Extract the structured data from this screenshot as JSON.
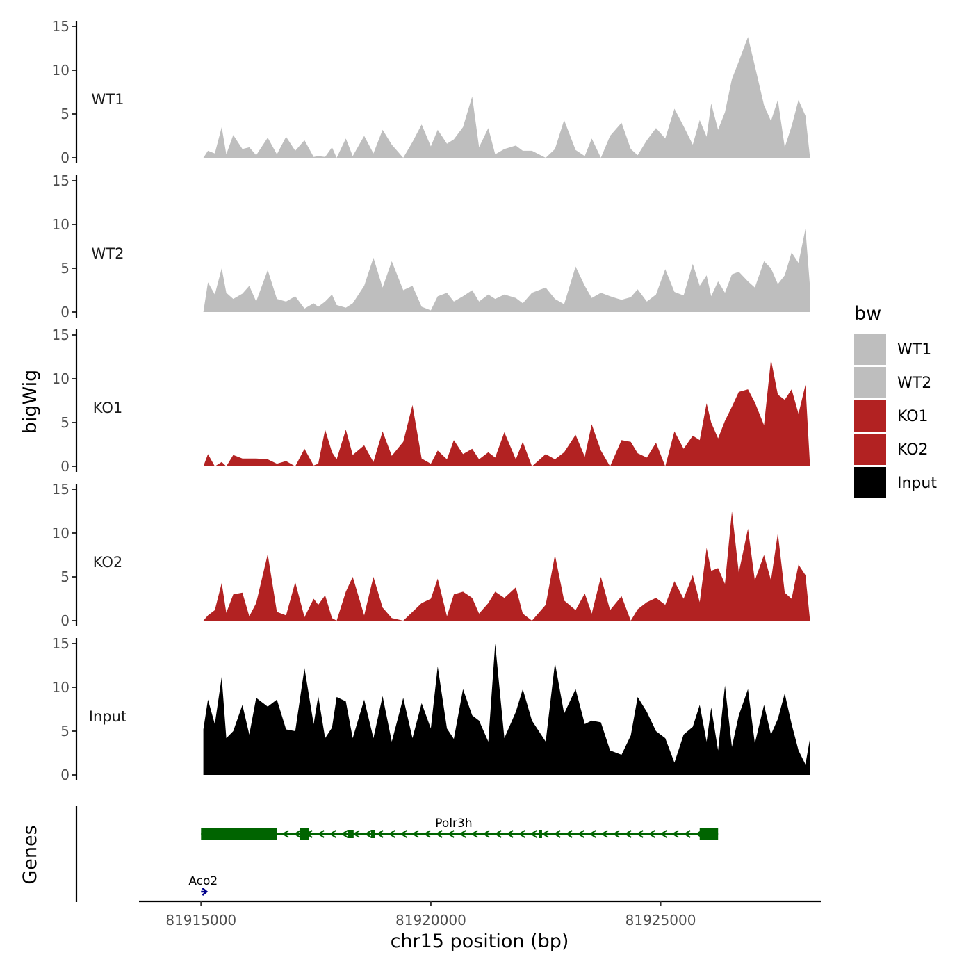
{
  "chart_data": {
    "type": "area",
    "chromosome": "chr15",
    "x_range": [
      81915000,
      81928300
    ],
    "xlabel": "chr15 position (bp)",
    "ylabel": "bigWig",
    "genes_label": "Genes",
    "x_ticks": [
      {
        "value": 81915000,
        "label": "81915000"
      },
      {
        "value": 81920000,
        "label": "81920000"
      },
      {
        "value": 81925000,
        "label": "81925000"
      }
    ],
    "ylim": [
      0,
      15
    ],
    "y_ticks": [
      {
        "value": 0,
        "label": "0"
      },
      {
        "value": 5,
        "label": "5"
      },
      {
        "value": 10,
        "label": "10"
      },
      {
        "value": 15,
        "label": "15"
      }
    ],
    "legend": {
      "title": "bw",
      "entries": [
        {
          "label": "WT1",
          "color": "#bebebe"
        },
        {
          "label": "WT2",
          "color": "#bebebe"
        },
        {
          "label": "KO1",
          "color": "#b22222"
        },
        {
          "label": "KO2",
          "color": "#b22222"
        },
        {
          "label": "Input",
          "color": "#000000"
        }
      ]
    },
    "series": [
      {
        "name": "WT1",
        "color": "#bebebe",
        "x": [
          81915050,
          81915150,
          81915300,
          81915450,
          81915550,
          81915700,
          81915900,
          81916050,
          81916200,
          81916450,
          81916650,
          81916850,
          81917050,
          81917250,
          81917450,
          81917550,
          81917700,
          81917850,
          81917950,
          81918150,
          81918300,
          81918550,
          81918750,
          81918950,
          81919150,
          81919400,
          81919600,
          81919800,
          81920000,
          81920150,
          81920350,
          81920500,
          81920700,
          81920900,
          81921050,
          81921250,
          81921400,
          81921600,
          81921850,
          81922000,
          81922200,
          81922500,
          81922700,
          81922900,
          81923150,
          81923350,
          81923500,
          81923700,
          81923900,
          81924150,
          81924350,
          81924500,
          81924700,
          81924900,
          81925100,
          81925300,
          81925500,
          81925700,
          81925850,
          81926000,
          81926100,
          81926250,
          81926400,
          81926550,
          81926700,
          81926900,
          81927050,
          81927250,
          81927400,
          81927550,
          81927700,
          81927850,
          81928000,
          81928150,
          81928250
        ],
        "values": [
          0,
          0.8,
          0.5,
          3.5,
          0.4,
          2.6,
          1.0,
          1.2,
          0.3,
          2.3,
          0.4,
          2.4,
          0.8,
          2.0,
          0.1,
          0.2,
          0.1,
          1.2,
          0,
          2.2,
          0.2,
          2.5,
          0.5,
          3.2,
          1.5,
          0.0,
          1.8,
          3.8,
          1.3,
          3.2,
          1.6,
          2.1,
          3.5,
          7.0,
          1.2,
          3.4,
          0.4,
          1.0,
          1.4,
          0.8,
          0.8,
          0.0,
          1.0,
          4.3,
          0.9,
          0.2,
          2.2,
          0.0,
          2.5,
          4.0,
          1.0,
          0.3,
          2.0,
          3.4,
          2.2,
          5.6,
          3.6,
          1.5,
          4.3,
          2.4,
          6.2,
          3.2,
          5.2,
          9.0,
          11.0,
          13.8,
          10.5,
          6.0,
          4.2,
          6.6,
          1.2,
          3.6,
          6.6,
          4.8,
          0.0
        ]
      },
      {
        "name": "WT2",
        "color": "#bebebe",
        "x": [
          81915050,
          81915150,
          81915300,
          81915450,
          81915550,
          81915700,
          81915900,
          81916050,
          81916200,
          81916450,
          81916650,
          81916850,
          81917050,
          81917250,
          81917450,
          81917550,
          81917700,
          81917850,
          81917950,
          81918150,
          81918300,
          81918550,
          81918750,
          81918950,
          81919150,
          81919400,
          81919600,
          81919800,
          81920000,
          81920150,
          81920350,
          81920500,
          81920700,
          81920900,
          81921050,
          81921250,
          81921400,
          81921600,
          81921850,
          81922000,
          81922200,
          81922500,
          81922700,
          81922900,
          81923150,
          81923350,
          81923500,
          81923700,
          81923900,
          81924150,
          81924350,
          81924500,
          81924700,
          81924900,
          81925100,
          81925300,
          81925500,
          81925700,
          81925850,
          81926000,
          81926100,
          81926250,
          81926400,
          81926550,
          81926700,
          81926900,
          81927050,
          81927250,
          81927400,
          81927550,
          81927700,
          81927850,
          81928000,
          81928150,
          81928250
        ],
        "values": [
          0,
          3.4,
          2.0,
          5.0,
          2.2,
          1.5,
          2.1,
          3.0,
          1.2,
          4.8,
          1.5,
          1.2,
          1.8,
          0.4,
          1.0,
          0.6,
          1.2,
          2.0,
          0.8,
          0.5,
          1.0,
          3.0,
          6.2,
          2.8,
          5.8,
          2.5,
          3.0,
          0.6,
          0.2,
          1.8,
          2.2,
          1.2,
          1.8,
          2.5,
          1.2,
          2.0,
          1.5,
          2.0,
          1.6,
          1.0,
          2.2,
          2.8,
          1.5,
          0.9,
          5.2,
          3.0,
          1.6,
          2.2,
          1.8,
          1.4,
          1.7,
          2.6,
          1.2,
          2.0,
          4.9,
          2.3,
          1.9,
          5.5,
          3.0,
          4.2,
          1.8,
          3.5,
          2.2,
          4.3,
          4.6,
          3.5,
          2.8,
          5.8,
          5.0,
          3.2,
          4.2,
          6.8,
          5.6,
          9.5,
          2.8
        ]
      },
      {
        "name": "KO1",
        "color": "#b22222",
        "x": [
          81915050,
          81915150,
          81915300,
          81915450,
          81915550,
          81915700,
          81915900,
          81916050,
          81916200,
          81916450,
          81916650,
          81916850,
          81917050,
          81917250,
          81917450,
          81917550,
          81917700,
          81917850,
          81917950,
          81918150,
          81918300,
          81918550,
          81918750,
          81918950,
          81919150,
          81919400,
          81919600,
          81919800,
          81920000,
          81920150,
          81920350,
          81920500,
          81920700,
          81920900,
          81921050,
          81921250,
          81921400,
          81921600,
          81921850,
          81922000,
          81922200,
          81922500,
          81922700,
          81922900,
          81923150,
          81923350,
          81923500,
          81923700,
          81923900,
          81924150,
          81924350,
          81924500,
          81924700,
          81924900,
          81925100,
          81925300,
          81925500,
          81925700,
          81925850,
          81926000,
          81926100,
          81926250,
          81926400,
          81926550,
          81926700,
          81926900,
          81927050,
          81927250,
          81927400,
          81927550,
          81927700,
          81927850,
          81928000,
          81928150,
          81928250
        ],
        "values": [
          0,
          1.4,
          0,
          0.5,
          0,
          1.3,
          0.9,
          0.9,
          0.9,
          0.8,
          0.3,
          0.6,
          0,
          2.0,
          0.1,
          0.3,
          4.2,
          1.6,
          0.8,
          4.2,
          1.3,
          2.4,
          0.5,
          4.0,
          1.2,
          2.8,
          7.0,
          0.9,
          0.3,
          1.8,
          0.8,
          3.0,
          1.4,
          2.0,
          0.8,
          1.6,
          1.0,
          3.9,
          0.8,
          2.8,
          0.0,
          1.4,
          0.8,
          1.6,
          3.6,
          1.1,
          4.8,
          1.8,
          0.0,
          3.0,
          2.8,
          1.5,
          1.0,
          2.7,
          0.0,
          4.0,
          2.0,
          3.5,
          3.0,
          7.2,
          5.0,
          3.2,
          5.2,
          6.8,
          8.5,
          8.8,
          7.3,
          4.7,
          12.2,
          8.2,
          7.6,
          8.8,
          6.0,
          9.3,
          0.0
        ]
      },
      {
        "name": "KO2",
        "color": "#b22222",
        "x": [
          81915050,
          81915150,
          81915300,
          81915450,
          81915550,
          81915700,
          81915900,
          81916050,
          81916200,
          81916450,
          81916650,
          81916850,
          81917050,
          81917250,
          81917450,
          81917550,
          81917700,
          81917850,
          81917950,
          81918150,
          81918300,
          81918550,
          81918750,
          81918950,
          81919150,
          81919400,
          81919600,
          81919800,
          81920000,
          81920150,
          81920350,
          81920500,
          81920700,
          81920900,
          81921050,
          81921250,
          81921400,
          81921600,
          81921850,
          81922000,
          81922200,
          81922500,
          81922700,
          81922900,
          81923150,
          81923350,
          81923500,
          81923700,
          81923900,
          81924150,
          81924350,
          81924500,
          81924700,
          81924900,
          81925100,
          81925300,
          81925500,
          81925700,
          81925850,
          81926000,
          81926100,
          81926250,
          81926400,
          81926550,
          81926700,
          81926900,
          81927050,
          81927250,
          81927400,
          81927550,
          81927700,
          81927850,
          81928000,
          81928150,
          81928250
        ],
        "values": [
          0,
          0.6,
          1.2,
          4.3,
          0.9,
          3.0,
          3.2,
          0.5,
          2.0,
          7.6,
          1.0,
          0.6,
          4.4,
          0.4,
          2.5,
          1.8,
          2.9,
          0.3,
          0,
          3.3,
          5.0,
          0.6,
          5.0,
          1.5,
          0.3,
          0.0,
          1.0,
          2.0,
          2.5,
          4.8,
          0.5,
          3.0,
          3.3,
          2.6,
          0.8,
          2.0,
          3.3,
          2.6,
          3.8,
          0.8,
          0.0,
          1.8,
          7.5,
          2.3,
          1.2,
          3.1,
          0.8,
          5.0,
          1.2,
          2.8,
          0.0,
          1.3,
          2.1,
          2.6,
          1.8,
          4.5,
          2.5,
          5.2,
          2.1,
          8.3,
          5.7,
          6.0,
          4.2,
          12.5,
          5.5,
          10.5,
          4.6,
          7.5,
          4.6,
          10.0,
          3.2,
          2.5,
          6.4,
          5.2,
          0.0
        ]
      },
      {
        "name": "Input",
        "color": "#000000",
        "x": [
          81915050,
          81915150,
          81915300,
          81915450,
          81915550,
          81915700,
          81915900,
          81916050,
          81916200,
          81916450,
          81916650,
          81916850,
          81917050,
          81917250,
          81917450,
          81917550,
          81917700,
          81917850,
          81917950,
          81918150,
          81918300,
          81918550,
          81918750,
          81918950,
          81919150,
          81919400,
          81919600,
          81919800,
          81920000,
          81920150,
          81920350,
          81920500,
          81920700,
          81920900,
          81921050,
          81921250,
          81921400,
          81921600,
          81921850,
          81922000,
          81922200,
          81922500,
          81922700,
          81922900,
          81923150,
          81923350,
          81923500,
          81923700,
          81923900,
          81924150,
          81924350,
          81924500,
          81924700,
          81924900,
          81925100,
          81925300,
          81925500,
          81925700,
          81925850,
          81926000,
          81926100,
          81926250,
          81926400,
          81926550,
          81926700,
          81926900,
          81927050,
          81927250,
          81927400,
          81927550,
          81927700,
          81927850,
          81928000,
          81928150,
          81928250
        ],
        "values": [
          5.2,
          8.6,
          5.8,
          11.2,
          4.2,
          5.0,
          8.0,
          4.6,
          8.8,
          7.8,
          8.6,
          5.2,
          5.0,
          12.2,
          5.8,
          9.0,
          4.2,
          5.4,
          8.9,
          8.4,
          4.2,
          8.6,
          4.2,
          9.0,
          3.8,
          8.8,
          4.2,
          8.2,
          5.3,
          12.4,
          5.3,
          4.1,
          9.8,
          6.8,
          6.2,
          3.8,
          15.0,
          4.2,
          7.2,
          9.8,
          6.2,
          3.8,
          12.8,
          7.0,
          9.8,
          5.8,
          6.2,
          6.0,
          2.8,
          2.3,
          4.5,
          8.9,
          7.2,
          5.0,
          4.2,
          1.4,
          4.6,
          5.5,
          8.0,
          3.8,
          7.7,
          2.8,
          10.2,
          3.2,
          6.8,
          9.8,
          3.6,
          8.0,
          4.6,
          6.4,
          9.3,
          5.8,
          2.8,
          1.2,
          4.2
        ]
      }
    ],
    "genes": [
      {
        "name": "Polr3h",
        "strand": "-",
        "color": "#006400",
        "start": 81915000,
        "end": 81926250,
        "exons": [
          [
            81915000,
            81916650
          ],
          [
            81917150,
            81917350
          ],
          [
            81918200,
            81918320
          ],
          [
            81918700,
            81918780
          ],
          [
            81922350,
            81922420
          ],
          [
            81925850,
            81926250
          ]
        ]
      },
      {
        "name": "Aco2",
        "strand": "+",
        "color": "#00008b",
        "start": 81915000,
        "end": 81915100,
        "exons": []
      }
    ]
  }
}
